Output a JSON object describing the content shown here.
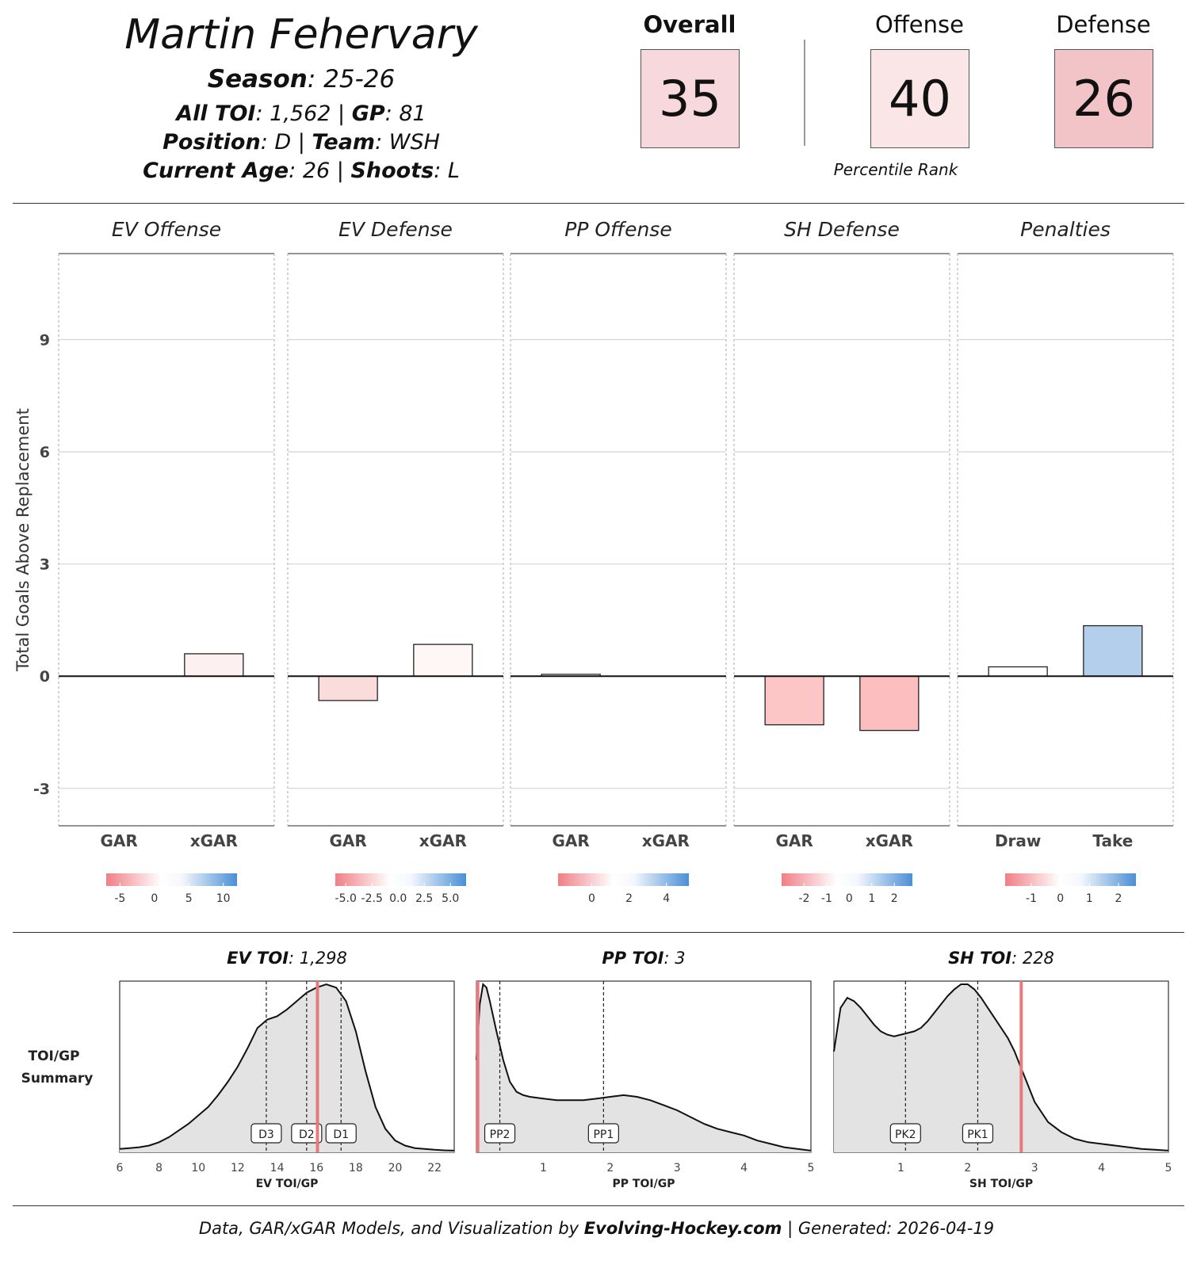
{
  "header": {
    "player_name": "Martin Fehervary",
    "season_label": "Season",
    "season": "25-26",
    "toi_label": "All TOI",
    "toi": "1,562",
    "gp_label": "GP",
    "gp": "81",
    "position_label": "Position",
    "position": "D",
    "team_label": "Team",
    "team": "WSH",
    "age_label": "Current Age",
    "age": "26",
    "shoots_label": "Shoots",
    "shoots": "L"
  },
  "scores": {
    "overall_label": "Overall",
    "overall": "35",
    "offense_label": "Offense",
    "offense": "40",
    "defense_label": "Defense",
    "defense": "26",
    "percentile_label": "Percentile Rank",
    "colors": {
      "overall": "#f7d9dd",
      "offense": "#fbe6e7",
      "defense": "#f3c4c7"
    }
  },
  "chart_data": [
    {
      "type": "bar",
      "ylabel": "Total Goals Above Replacement",
      "ylim": [
        -4,
        11.3
      ],
      "yticks": [
        -3,
        0,
        3,
        6,
        9
      ],
      "panels": [
        {
          "title": "EV Offense",
          "categories": [
            "GAR",
            "xGAR"
          ],
          "values": [
            0.0,
            0.6
          ],
          "colors": [
            "#ffffff",
            "#fdf0f0"
          ],
          "legend_ticks": [
            "-5",
            "0",
            "5",
            "10"
          ],
          "legend_min": -7,
          "legend_max": 12
        },
        {
          "title": "EV Defense",
          "categories": [
            "GAR",
            "xGAR"
          ],
          "values": [
            -0.65,
            0.85
          ],
          "colors": [
            "#fbdcdc",
            "#fff7f6"
          ],
          "legend_ticks": [
            "-5.0",
            "-2.5",
            "0.0",
            "2.5",
            "5.0"
          ],
          "legend_min": -6,
          "legend_max": 6.5
        },
        {
          "title": "PP Offense",
          "categories": [
            "GAR",
            "xGAR"
          ],
          "values": [
            0.05,
            0.0
          ],
          "colors": [
            "#ffffff",
            "#ffffff"
          ],
          "legend_ticks": [
            "0",
            "2",
            "4"
          ],
          "legend_min": -1.8,
          "legend_max": 5.2
        },
        {
          "title": "SH Defense",
          "categories": [
            "GAR",
            "xGAR"
          ],
          "values": [
            -1.3,
            -1.45
          ],
          "colors": [
            "#fcc6c7",
            "#fcbebf"
          ],
          "legend_ticks": [
            "-2",
            "-1",
            "0",
            "1",
            "2"
          ],
          "legend_min": -3,
          "legend_max": 2.8
        },
        {
          "title": "Penalties",
          "categories": [
            "Draw",
            "Take"
          ],
          "values": [
            0.25,
            1.35
          ],
          "colors": [
            "#ffffff",
            "#b4cfec"
          ],
          "legend_ticks": [
            "-1",
            "0",
            "1",
            "2"
          ],
          "legend_min": -1.9,
          "legend_max": 2.6
        }
      ]
    },
    {
      "type": "area",
      "side_label_1": "TOI/GP",
      "side_label_2": "Summary",
      "panels": [
        {
          "title_bold": "EV TOI",
          "title_value": "1,298",
          "xlabel": "EV TOI/GP",
          "xlim": [
            6,
            23
          ],
          "xticks": [
            6,
            8,
            10,
            12,
            14,
            16,
            18,
            20,
            22
          ],
          "marker": 16.05,
          "refs": [
            {
              "label": "D3",
              "x": 13.45
            },
            {
              "label": "D2",
              "x": 15.5
            },
            {
              "label": "D1",
              "x": 17.25
            }
          ],
          "density_x": [
            6,
            6.5,
            7,
            7.5,
            8,
            8.5,
            9,
            9.5,
            10,
            10.5,
            11,
            11.5,
            12,
            12.5,
            13,
            13.5,
            14,
            14.5,
            15,
            15.5,
            16,
            16.5,
            17,
            17.5,
            18,
            18.5,
            19,
            19.5,
            20,
            20.5,
            21,
            21.5,
            22,
            22.5,
            23
          ],
          "density_y": [
            0.02,
            0.025,
            0.03,
            0.04,
            0.06,
            0.09,
            0.13,
            0.17,
            0.22,
            0.27,
            0.34,
            0.42,
            0.51,
            0.62,
            0.74,
            0.79,
            0.81,
            0.85,
            0.9,
            0.95,
            0.98,
            1.0,
            0.98,
            0.9,
            0.72,
            0.48,
            0.27,
            0.14,
            0.07,
            0.04,
            0.025,
            0.02,
            0.015,
            0.012,
            0.01
          ]
        },
        {
          "title_bold": "PP TOI",
          "title_value": "3",
          "xlabel": "PP TOI/GP",
          "xlim": [
            0,
            5
          ],
          "xticks": [
            1,
            2,
            3,
            4,
            5
          ],
          "marker": 0.02,
          "refs": [
            {
              "label": "PP2",
              "x": 0.35
            },
            {
              "label": "PP1",
              "x": 1.9
            }
          ],
          "density_x": [
            0,
            0.05,
            0.1,
            0.15,
            0.2,
            0.3,
            0.4,
            0.5,
            0.6,
            0.7,
            0.8,
            1.0,
            1.2,
            1.4,
            1.6,
            1.8,
            2.0,
            2.2,
            2.4,
            2.6,
            2.8,
            3.0,
            3.2,
            3.4,
            3.6,
            3.8,
            4.0,
            4.2,
            4.4,
            4.6,
            4.8,
            5.0
          ],
          "density_y": [
            0.55,
            0.88,
            1.0,
            0.98,
            0.9,
            0.72,
            0.55,
            0.42,
            0.36,
            0.34,
            0.33,
            0.32,
            0.31,
            0.31,
            0.31,
            0.32,
            0.33,
            0.34,
            0.33,
            0.31,
            0.28,
            0.25,
            0.21,
            0.17,
            0.14,
            0.12,
            0.1,
            0.07,
            0.05,
            0.03,
            0.02,
            0.01
          ]
        },
        {
          "title_bold": "SH TOI",
          "title_value": "228",
          "xlabel": "SH TOI/GP",
          "xlim": [
            0,
            5
          ],
          "xticks": [
            1,
            2,
            3,
            4,
            5
          ],
          "marker": 2.8,
          "refs": [
            {
              "label": "PK2",
              "x": 1.07
            },
            {
              "label": "PK1",
              "x": 2.15
            }
          ],
          "density_x": [
            0,
            0.1,
            0.2,
            0.3,
            0.4,
            0.5,
            0.6,
            0.7,
            0.8,
            0.9,
            1.0,
            1.1,
            1.2,
            1.3,
            1.4,
            1.5,
            1.6,
            1.7,
            1.8,
            1.9,
            2.0,
            2.1,
            2.2,
            2.3,
            2.4,
            2.5,
            2.6,
            2.7,
            2.8,
            2.9,
            3.0,
            3.2,
            3.4,
            3.6,
            3.8,
            4.0,
            4.2,
            4.4,
            4.6,
            4.8,
            5.0
          ],
          "density_y": [
            0.6,
            0.86,
            0.92,
            0.9,
            0.86,
            0.81,
            0.76,
            0.72,
            0.7,
            0.69,
            0.7,
            0.71,
            0.72,
            0.74,
            0.78,
            0.83,
            0.88,
            0.93,
            0.97,
            1.0,
            1.0,
            0.97,
            0.92,
            0.86,
            0.8,
            0.74,
            0.68,
            0.6,
            0.5,
            0.4,
            0.3,
            0.18,
            0.12,
            0.08,
            0.06,
            0.05,
            0.04,
            0.03,
            0.02,
            0.015,
            0.01
          ]
        }
      ]
    }
  ],
  "footer": {
    "prefix": "Data, GAR/xGAR Models, and Visualization by ",
    "site": "Evolving-Hockey.com",
    "suffix": " | Generated: 2026-04-19"
  }
}
